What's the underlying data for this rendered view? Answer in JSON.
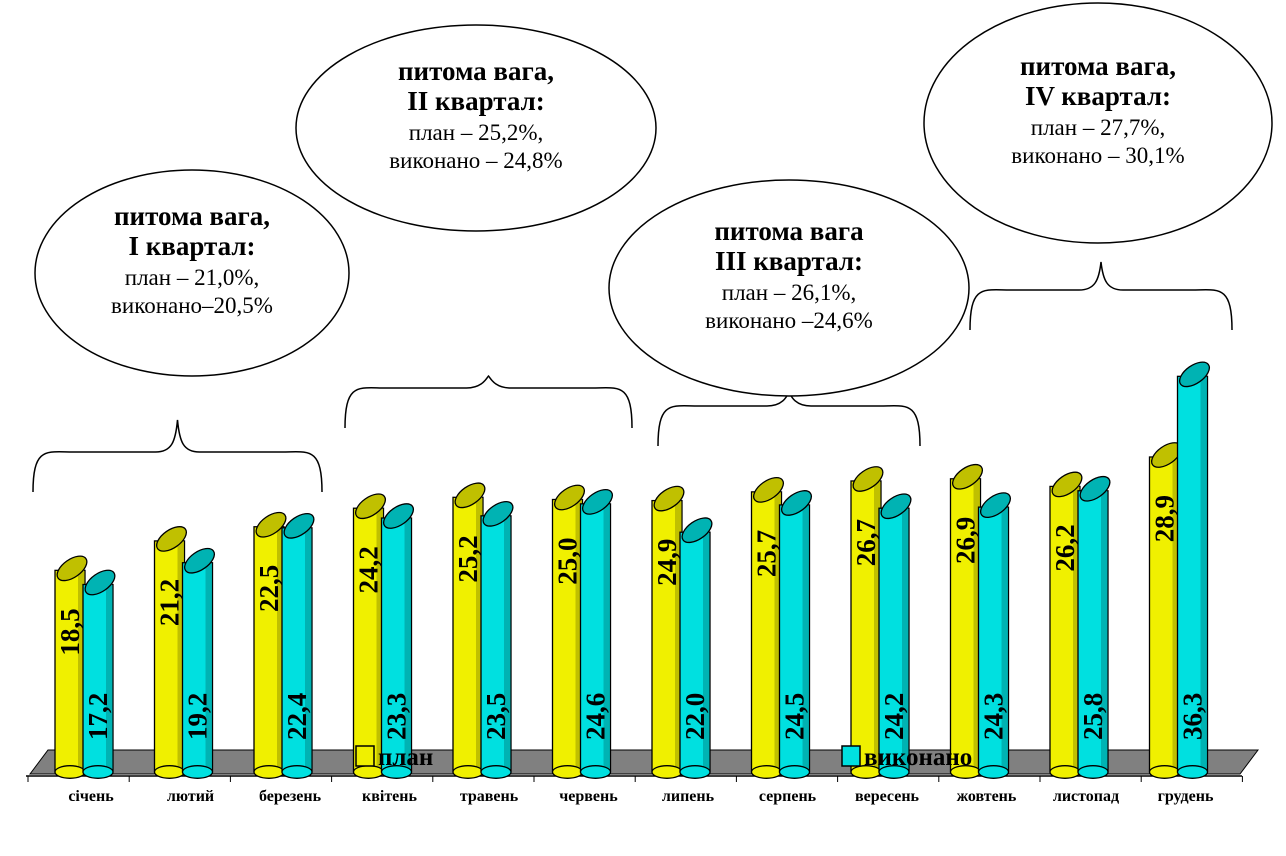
{
  "chart_data": {
    "type": "bar",
    "categories": [
      "січень",
      "лютий",
      "березень",
      "квітень",
      "травень",
      "червень",
      "липень",
      "серпень",
      "вересень",
      "жовтень",
      "листопад",
      "грудень"
    ],
    "series": [
      {
        "name": "план",
        "color": "#f0f000",
        "values": [
          18.5,
          21.2,
          22.5,
          24.2,
          25.2,
          25.0,
          24.9,
          25.7,
          26.7,
          26.9,
          26.2,
          28.9
        ]
      },
      {
        "name": "виконано",
        "color": "#00e0e0",
        "values": [
          17.2,
          19.2,
          22.4,
          23.3,
          23.5,
          24.6,
          22.0,
          24.5,
          24.2,
          24.3,
          25.8,
          36.3
        ]
      }
    ],
    "value_labels": {
      "plan": [
        "18,5",
        "21,2",
        "22,5",
        "24,2",
        "25,2",
        "25,0",
        "24,9",
        "25,7",
        "26,7",
        "26,9",
        "26,2",
        "28,9"
      ],
      "done": [
        "17,2",
        "19,2",
        "22,4",
        "23,3",
        "23,5",
        "24,6",
        "22,0",
        "24,5",
        "24,2",
        "24,3",
        "25,8",
        "36,3"
      ]
    },
    "floor_color": "#808080",
    "annotations": [
      {
        "title": [
          "питома вага,",
          "I квартал:"
        ],
        "lines": [
          "план – 21,0%,",
          "виконано–20,5%"
        ]
      },
      {
        "title": [
          "питома вага,",
          "II квартал:"
        ],
        "lines": [
          "план – 25,2%,",
          "виконано – 24,8%"
        ]
      },
      {
        "title": [
          "питома вага",
          "III квартал:"
        ],
        "lines": [
          "план – 26,1%,",
          "виконано –24,6%"
        ]
      },
      {
        "title": [
          "питома вага,",
          "IV квартал:"
        ],
        "lines": [
          "план – 27,7%,",
          "виконано – 30,1%"
        ]
      }
    ],
    "legend": {
      "placement": "bottom",
      "items": [
        "план",
        "виконано"
      ]
    }
  }
}
